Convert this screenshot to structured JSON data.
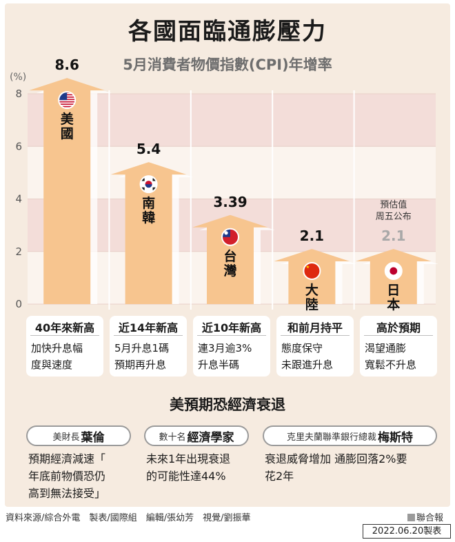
{
  "title": "各國面臨通膨壓力",
  "subtitle": "5月消費者物價指數(CPI)年增率",
  "chart_data": {
    "type": "bar",
    "y_unit": "(%)",
    "ylim": [
      0,
      8
    ],
    "yticks": [
      0,
      2,
      4,
      6,
      8
    ],
    "grid": "alternating horizontal bands",
    "categories": [
      "美國",
      "南韓",
      "台灣",
      "大陸",
      "日本"
    ],
    "values": [
      8.6,
      5.4,
      3.39,
      2.1,
      2.1
    ],
    "value_labels": [
      "8.6",
      "5.4",
      "3.39",
      "2.1",
      "2.1"
    ],
    "flags": [
      "us-flag-icon",
      "korea-flag-icon",
      "taiwan-flag-icon",
      "china-flag-icon",
      "japan-flag-icon"
    ],
    "estimate_note": "預估值 周五公布",
    "estimate_note_lines": [
      "預估值",
      "周五公布"
    ],
    "bar_color": "#f7c58f",
    "estimate_value_color": "#a8a8a8"
  },
  "cards": [
    {
      "head": "40年來新高",
      "lines": [
        "加快升息幅",
        "度與速度"
      ]
    },
    {
      "head": "近14年新高",
      "lines": [
        "5月升息1碼",
        "預期再升息"
      ]
    },
    {
      "head": "近10年新高",
      "lines": [
        "連3月逾3%",
        "升息半碼"
      ]
    },
    {
      "head": "和前月持平",
      "lines": [
        "態度保守",
        "未跟進升息"
      ]
    },
    {
      "head": "高於預期",
      "lines": [
        "渴望通膨",
        "寬鬆不升息"
      ]
    }
  ],
  "section_title": "美預期恐經濟衰退",
  "views": [
    {
      "prefix": "美財長",
      "name": "葉倫",
      "lines": [
        "預期經濟減速「",
        "年底前物價恐仍",
        "高到無法接受」"
      ]
    },
    {
      "prefix": "數十名",
      "name": "經濟學家",
      "lines": [
        "未來1年出現衰退",
        "的可能性達44%"
      ]
    },
    {
      "prefix": "克里夫蘭聯準銀行總裁",
      "name": "梅斯特",
      "lines": [
        "衰退威脅增加 通膨回落2%要",
        "花2年"
      ]
    }
  ],
  "footer": "資料來源/綜合外電　製表/國際組　編輯/張幼芳　視覺/劉振華",
  "brand": "聯合報",
  "date": "2022.06.20製表"
}
